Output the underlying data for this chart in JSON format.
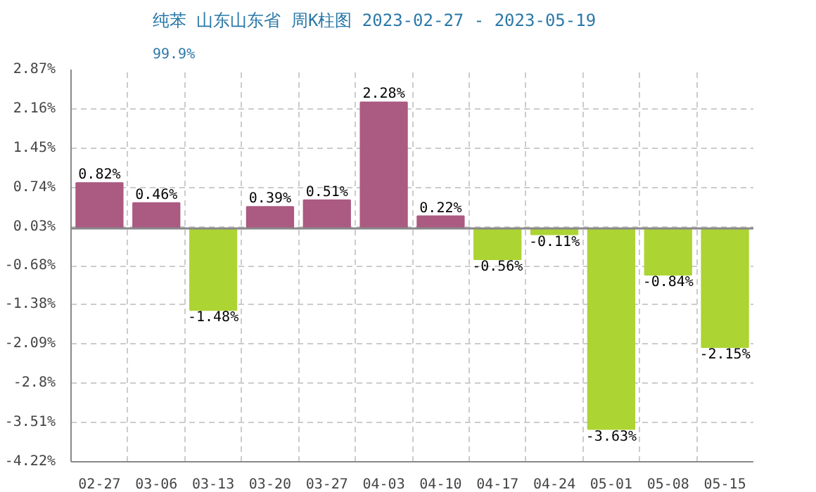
{
  "chart_data": {
    "type": "bar",
    "title": "纯苯 山东山东省 周K柱图 2023-02-27 - 2023-05-19",
    "subtitle": "99.9%",
    "categories": [
      "02-27",
      "03-06",
      "03-13",
      "03-20",
      "03-27",
      "04-03",
      "04-10",
      "04-17",
      "04-24",
      "05-01",
      "05-08",
      "05-15"
    ],
    "values": [
      0.82,
      0.46,
      -1.48,
      0.39,
      0.51,
      2.28,
      0.22,
      -0.56,
      -0.11,
      -3.63,
      -0.84,
      -2.15
    ],
    "colors": [
      "#ab5a82",
      "#ab5a82",
      "#acd433",
      "#ab5a82",
      "#ab5a82",
      "#ab5a82",
      "#ab5a82",
      "#acd433",
      "#acd433",
      "#acd433",
      "#acd433",
      "#acd433"
    ],
    "value_labels": [
      "0.82%",
      "0.46%",
      "-1.48%",
      "0.39%",
      "0.51%",
      "2.28%",
      "0.22%",
      "-0.56%",
      "-0.11%",
      "-3.63%",
      "-0.84%",
      "-2.15%"
    ],
    "ylim": [
      -4.22,
      2.87
    ],
    "yticks": [
      {
        "value": 2.87,
        "label": "2.87%"
      },
      {
        "value": 2.16,
        "label": "2.16%"
      },
      {
        "value": 1.45,
        "label": "1.45%"
      },
      {
        "value": 0.74,
        "label": "0.74%"
      },
      {
        "value": 0.03,
        "label": "0.03%"
      },
      {
        "value": -0.68,
        "label": "-0.68%"
      },
      {
        "value": -1.38,
        "label": "-1.38%"
      },
      {
        "value": -2.09,
        "label": "-2.09%"
      },
      {
        "value": -2.8,
        "label": "-2.8%"
      },
      {
        "value": -3.51,
        "label": "-3.51%"
      },
      {
        "value": -4.22,
        "label": "-4.22%"
      }
    ],
    "grid": true
  }
}
